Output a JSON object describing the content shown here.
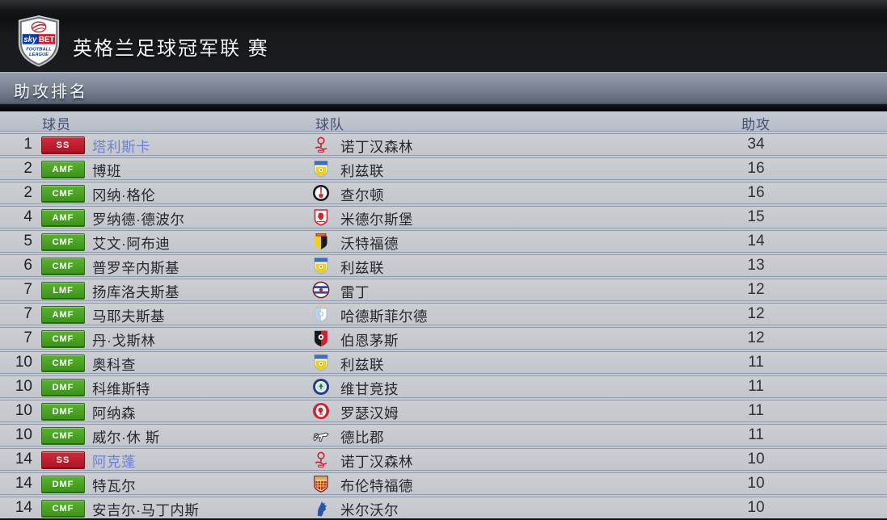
{
  "header": {
    "league_title": "英格兰足球冠军联 赛",
    "crest": {
      "sky": "sky",
      "bet": "BET",
      "football": "FOOTBALL",
      "league": "LEAGUE"
    }
  },
  "section": {
    "title": "助攻排名"
  },
  "table": {
    "columns": {
      "player": "球员",
      "team": "球队",
      "assists": "助攻"
    },
    "rows": [
      {
        "rank": "1",
        "position": "SS",
        "badge": "red",
        "player": "塔利斯卡",
        "highlight": true,
        "team": "诺丁汉森林",
        "logo": "nottingham-forest",
        "assists": "34"
      },
      {
        "rank": "2",
        "position": "AMF",
        "badge": "green",
        "player": "博班",
        "highlight": false,
        "team": "利兹联",
        "logo": "leeds",
        "assists": "16"
      },
      {
        "rank": "2",
        "position": "CMF",
        "badge": "green",
        "player": "冈纳·格伦",
        "highlight": false,
        "team": "查尔顿",
        "logo": "charlton",
        "assists": "16"
      },
      {
        "rank": "4",
        "position": "AMF",
        "badge": "green",
        "player": "罗纳德·德波尔",
        "highlight": false,
        "team": "米德尔斯堡",
        "logo": "middlesbrough",
        "assists": "15"
      },
      {
        "rank": "5",
        "position": "CMF",
        "badge": "green",
        "player": "艾文·阿布迪",
        "highlight": false,
        "team": "沃特福德",
        "logo": "watford",
        "assists": "14"
      },
      {
        "rank": "6",
        "position": "CMF",
        "badge": "green",
        "player": "普罗辛内斯基",
        "highlight": false,
        "team": "利兹联",
        "logo": "leeds",
        "assists": "13"
      },
      {
        "rank": "7",
        "position": "LMF",
        "badge": "green",
        "player": "扬库洛夫斯基",
        "highlight": false,
        "team": "雷丁",
        "logo": "reading",
        "assists": "12"
      },
      {
        "rank": "7",
        "position": "AMF",
        "badge": "green",
        "player": "马耶夫斯基",
        "highlight": false,
        "team": "哈德斯菲尔德",
        "logo": "huddersfield",
        "assists": "12"
      },
      {
        "rank": "7",
        "position": "CMF",
        "badge": "green",
        "player": "丹·戈斯林",
        "highlight": false,
        "team": "伯恩茅斯",
        "logo": "bournemouth",
        "assists": "12"
      },
      {
        "rank": "10",
        "position": "CMF",
        "badge": "green",
        "player": "奥科查",
        "highlight": false,
        "team": "利兹联",
        "logo": "leeds",
        "assists": "11"
      },
      {
        "rank": "10",
        "position": "DMF",
        "badge": "green",
        "player": "科维斯特",
        "highlight": false,
        "team": "维甘竞技",
        "logo": "wigan",
        "assists": "11"
      },
      {
        "rank": "10",
        "position": "DMF",
        "badge": "green",
        "player": "阿纳森",
        "highlight": false,
        "team": "罗瑟汉姆",
        "logo": "rotherham",
        "assists": "11"
      },
      {
        "rank": "10",
        "position": "CMF",
        "badge": "green",
        "player": "威尔·休 斯",
        "highlight": false,
        "team": "德比郡",
        "logo": "derby",
        "assists": "11"
      },
      {
        "rank": "14",
        "position": "SS",
        "badge": "red",
        "player": "阿克蓬",
        "highlight": true,
        "team": "诺丁汉森林",
        "logo": "nottingham-forest",
        "assists": "10"
      },
      {
        "rank": "14",
        "position": "DMF",
        "badge": "green",
        "player": "特瓦尔",
        "highlight": false,
        "team": "布伦特福德",
        "logo": "brentford",
        "assists": "10"
      },
      {
        "rank": "14",
        "position": "CMF",
        "badge": "green",
        "player": "安吉尔·马丁内斯",
        "highlight": false,
        "team": "米尔沃尔",
        "logo": "millwall",
        "assists": "10"
      }
    ]
  },
  "colors": {
    "ss_badge": "#c42233",
    "mf_badge": "#49a928",
    "highlight_player": "#6e80d8",
    "section_bar_top": "#929caa",
    "section_bar_bottom": "#5a6475",
    "row_bg": "#c6cacd"
  }
}
